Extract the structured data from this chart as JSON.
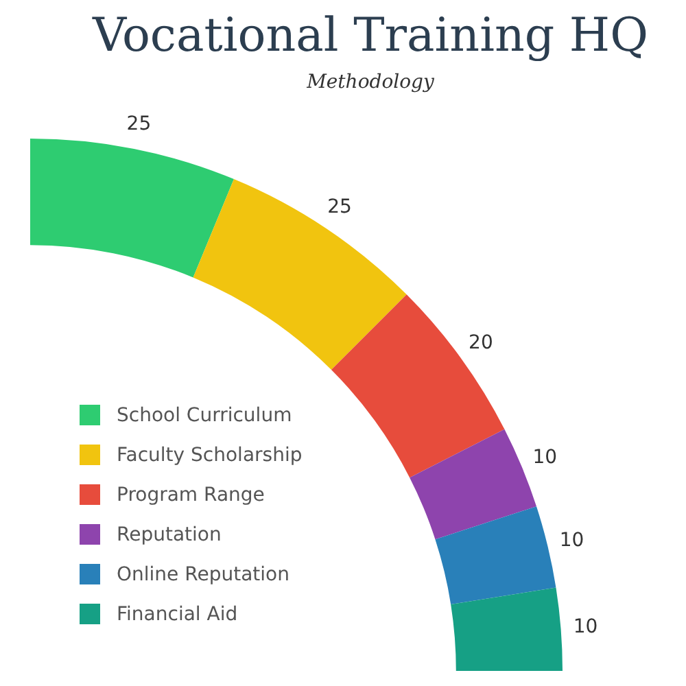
{
  "chart_data": {
    "type": "donut",
    "title": "Vocational Training HQ",
    "subtitle": "Methodology",
    "categories": [
      "School Curriculum",
      "Faculty Scholarship",
      "Program Range",
      "Reputation",
      "Online Reputation",
      "Financial Aid"
    ],
    "values": [
      25,
      25,
      20,
      10,
      10,
      10
    ],
    "colors": [
      "#2ecc71",
      "#f1c40f",
      "#e74c3c",
      "#8e44ad",
      "#2980b9",
      "#16a085"
    ],
    "data_labels": true,
    "legend": "bottom left"
  }
}
